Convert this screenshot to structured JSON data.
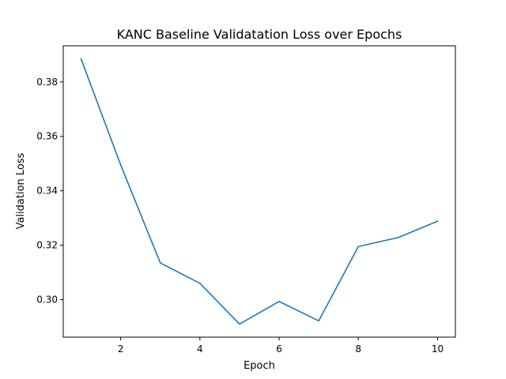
{
  "chart_data": {
    "type": "line",
    "title": "KANC Baseline Validatation Loss over Epochs",
    "xlabel": "Epoch",
    "ylabel": "Validation Loss",
    "x": [
      1,
      2,
      3,
      4,
      5,
      6,
      7,
      8,
      9,
      10
    ],
    "series": [
      {
        "values": [
          0.3885,
          0.3495,
          0.3135,
          0.306,
          0.291,
          0.2993,
          0.2922,
          0.3195,
          0.3228,
          0.3288
        ],
        "color": "#1f77b4"
      }
    ],
    "xticks": [
      "2",
      "4",
      "6",
      "8",
      "10"
    ],
    "yticks": [
      "0.30",
      "0.32",
      "0.34",
      "0.36",
      "0.38"
    ],
    "xlim": [
      0.55,
      10.45
    ],
    "ylim": [
      0.2862,
      0.3933
    ],
    "grid": false,
    "legend": "none"
  }
}
